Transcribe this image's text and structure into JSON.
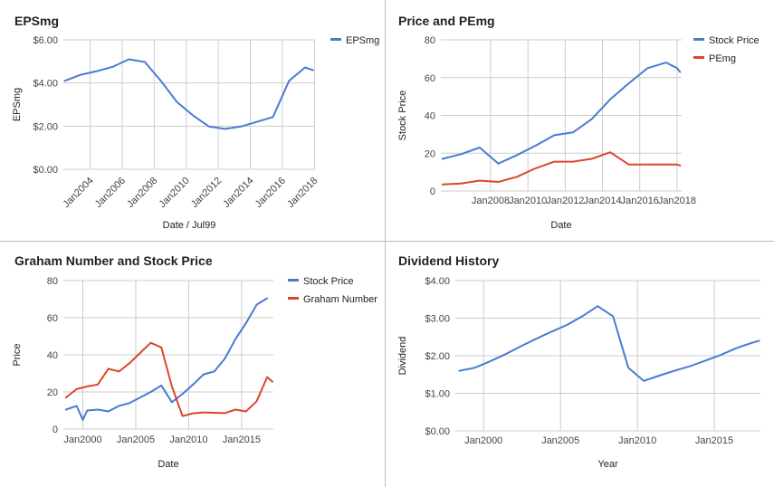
{
  "chart_data": [
    {
      "type": "line",
      "title": "EPSmg",
      "xlabel": "Date / Jul99",
      "ylabel": "EPSmg",
      "x_type": "date",
      "xlim": [
        "2002-05-01",
        "2018-01-15"
      ],
      "ylim": [
        0,
        6
      ],
      "y_ticks": [
        "$0.00",
        "$2.00",
        "$4.00",
        "$6.00"
      ],
      "y_tick_values": [
        0,
        2,
        4,
        6
      ],
      "x_ticks": [
        "Jan2004",
        "Jan2006",
        "Jan2008",
        "Jan2010",
        "Jan2012",
        "Jan2014",
        "Jan2016",
        "Jan2018"
      ],
      "x_tick_values": [
        "2004-01-01",
        "2006-01-01",
        "2008-01-01",
        "2010-01-01",
        "2012-01-01",
        "2014-01-01",
        "2016-01-01",
        "2018-01-01"
      ],
      "x_tick_rotation": -45,
      "legend": "right",
      "series": [
        {
          "name": "EPSmg",
          "color": "#4a7bd1",
          "x": [
            "2002-06-01",
            "2003-06-01",
            "2004-06-01",
            "2005-06-01",
            "2006-06-01",
            "2007-06-01",
            "2008-06-01",
            "2009-06-01",
            "2010-06-01",
            "2011-06-01",
            "2012-06-01",
            "2013-06-01",
            "2014-06-01",
            "2015-06-01",
            "2016-06-01",
            "2017-06-01",
            "2017-12-01"
          ],
          "y": [
            4.1,
            4.38,
            4.55,
            4.75,
            5.1,
            4.97,
            4.1,
            3.12,
            2.5,
            1.98,
            1.87,
            1.98,
            2.2,
            2.42,
            4.1,
            4.72,
            4.6
          ]
        }
      ]
    },
    {
      "type": "line",
      "title": "Price and PEmg",
      "xlabel": "Date",
      "ylabel": "Stock Price",
      "x_type": "date",
      "xlim": [
        "2005-05-01",
        "2018-04-01"
      ],
      "ylim": [
        0,
        80
      ],
      "y_ticks": [
        "0",
        "20",
        "40",
        "60",
        "80"
      ],
      "y_tick_values": [
        0,
        20,
        40,
        60,
        80
      ],
      "x_ticks": [
        "Jan2008",
        "Jan2010",
        "Jan2012",
        "Jan2014",
        "Jan2016",
        "Jan2018"
      ],
      "x_tick_values": [
        "2008-01-01",
        "2010-01-01",
        "2012-01-01",
        "2014-01-01",
        "2016-01-01",
        "2018-01-01"
      ],
      "legend": "right",
      "series": [
        {
          "name": "Stock Price",
          "color": "#4a7bd1",
          "x": [
            "2005-06-01",
            "2006-06-01",
            "2007-06-01",
            "2008-06-01",
            "2009-06-01",
            "2010-06-01",
            "2011-06-01",
            "2012-06-01",
            "2013-06-01",
            "2014-06-01",
            "2015-06-01",
            "2016-06-01",
            "2017-06-01",
            "2018-01-01",
            "2018-03-01"
          ],
          "y": [
            17,
            19.5,
            23,
            14.5,
            19,
            24,
            29.5,
            31,
            38,
            48.5,
            57,
            65,
            68,
            65,
            63
          ]
        },
        {
          "name": "PEmg",
          "color": "#d9472b",
          "x": [
            "2005-06-01",
            "2006-06-01",
            "2007-06-01",
            "2008-06-01",
            "2009-06-01",
            "2010-06-01",
            "2011-06-01",
            "2012-06-01",
            "2013-06-01",
            "2014-06-01",
            "2015-06-01",
            "2016-06-01",
            "2017-06-01",
            "2018-01-01",
            "2018-03-01"
          ],
          "y": [
            3.5,
            4,
            5.5,
            4.8,
            7.5,
            12,
            15.5,
            15.5,
            17,
            20.5,
            14,
            14,
            14,
            14,
            13.5
          ]
        }
      ]
    },
    {
      "type": "line",
      "title": "Graham Number and Stock Price",
      "xlabel": "Date",
      "ylabel": "Price",
      "x_type": "date",
      "xlim": [
        "1998-03-01",
        "2018-01-01"
      ],
      "ylim": [
        0,
        80
      ],
      "y_ticks": [
        "0",
        "20",
        "40",
        "60",
        "80"
      ],
      "y_tick_values": [
        0,
        20,
        40,
        60,
        80
      ],
      "x_ticks": [
        "Jan2000",
        "Jan2005",
        "Jan2010",
        "Jan2015"
      ],
      "x_tick_values": [
        "2000-01-01",
        "2005-01-01",
        "2010-01-01",
        "2015-01-01"
      ],
      "legend": "right",
      "series": [
        {
          "name": "Stock Price",
          "color": "#4a7bd1",
          "x": [
            "1998-06-01",
            "1999-06-01",
            "2000-01-01",
            "2000-06-01",
            "2001-06-01",
            "2002-06-01",
            "2003-06-01",
            "2004-06-01",
            "2005-06-01",
            "2006-06-01",
            "2007-06-01",
            "2008-06-01",
            "2009-06-01",
            "2010-06-01",
            "2011-06-01",
            "2012-06-01",
            "2013-06-01",
            "2014-06-01",
            "2015-06-01",
            "2016-06-01",
            "2017-06-01"
          ],
          "y": [
            10.5,
            12.5,
            5,
            10,
            10.5,
            9.5,
            12.5,
            14,
            17,
            20,
            23.5,
            14.5,
            19,
            24,
            29.5,
            31,
            38,
            48.5,
            57,
            67,
            70.5
          ]
        },
        {
          "name": "Graham Number",
          "color": "#d9472b",
          "x": [
            "1998-06-01",
            "1999-06-01",
            "2000-06-01",
            "2001-06-01",
            "2002-06-01",
            "2003-06-01",
            "2004-06-01",
            "2005-06-01",
            "2006-06-01",
            "2007-06-01",
            "2008-06-01",
            "2009-06-01",
            "2010-06-01",
            "2011-06-01",
            "2012-06-01",
            "2013-06-01",
            "2014-06-01",
            "2015-06-01",
            "2016-06-01",
            "2017-06-01",
            "2017-12-01"
          ],
          "y": [
            17,
            21.5,
            23,
            24,
            32.5,
            31,
            35.5,
            41,
            46.5,
            44,
            23,
            7,
            8.5,
            9,
            8.8,
            8.6,
            10.5,
            9.5,
            15,
            28,
            25.5
          ]
        }
      ]
    },
    {
      "type": "line",
      "title": "Dividend History",
      "xlabel": "Year",
      "ylabel": "Dividend",
      "x_type": "date",
      "xlim": [
        "1998-03-01",
        "2018-01-01"
      ],
      "ylim": [
        0,
        4
      ],
      "y_ticks": [
        "$0.00",
        "$1.00",
        "$2.00",
        "$3.00",
        "$4.00"
      ],
      "y_tick_values": [
        0,
        1,
        2,
        3,
        4
      ],
      "x_ticks": [
        "Jan2000",
        "Jan2005",
        "Jan2010",
        "Jan2015"
      ],
      "x_tick_values": [
        "2000-01-01",
        "2005-01-01",
        "2010-01-01",
        "2015-01-01"
      ],
      "legend": "none",
      "series": [
        {
          "color": "#4a7bd1",
          "x": [
            "1998-06-01",
            "1999-06-01",
            "2000-06-01",
            "2001-06-01",
            "2002-06-01",
            "2003-06-01",
            "2004-06-01",
            "2005-06-01",
            "2006-06-01",
            "2007-06-01",
            "2008-06-01",
            "2009-06-01",
            "2010-06-01",
            "2011-06-01",
            "2012-06-01",
            "2013-06-01",
            "2014-06-01",
            "2015-06-01",
            "2016-06-01",
            "2017-06-01",
            "2017-12-01"
          ],
          "y": [
            1.6,
            1.68,
            1.85,
            2.04,
            2.25,
            2.45,
            2.64,
            2.82,
            3.05,
            3.32,
            3.05,
            1.68,
            1.33,
            1.47,
            1.6,
            1.72,
            1.87,
            2.02,
            2.2,
            2.34,
            2.4
          ]
        }
      ]
    }
  ]
}
